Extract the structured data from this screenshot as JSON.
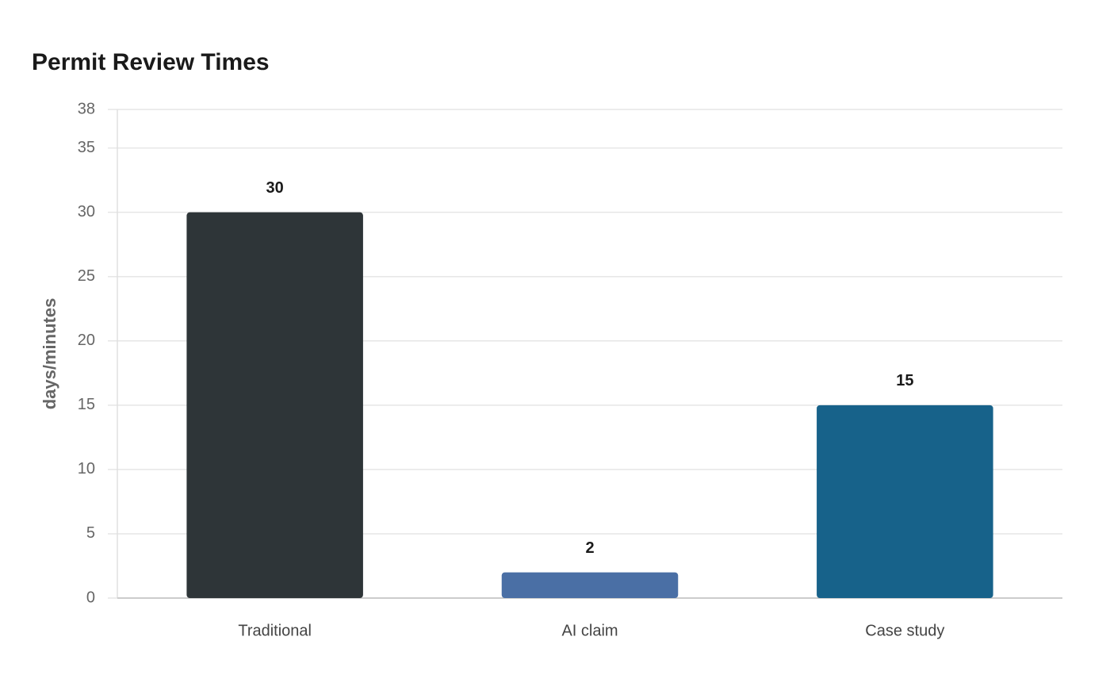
{
  "chart_data": {
    "type": "bar",
    "title": "Permit Review Times",
    "y_label": "days/minutes",
    "categories": [
      "Traditional",
      "AI claim",
      "Case study"
    ],
    "values": [
      30,
      2,
      15
    ],
    "colors": [
      "#2e3538",
      "#4a6fa5",
      "#17628a"
    ],
    "ylim": [
      0,
      38
    ],
    "yticks": [
      0,
      5,
      10,
      15,
      20,
      25,
      30,
      35,
      38
    ],
    "grid": true
  }
}
